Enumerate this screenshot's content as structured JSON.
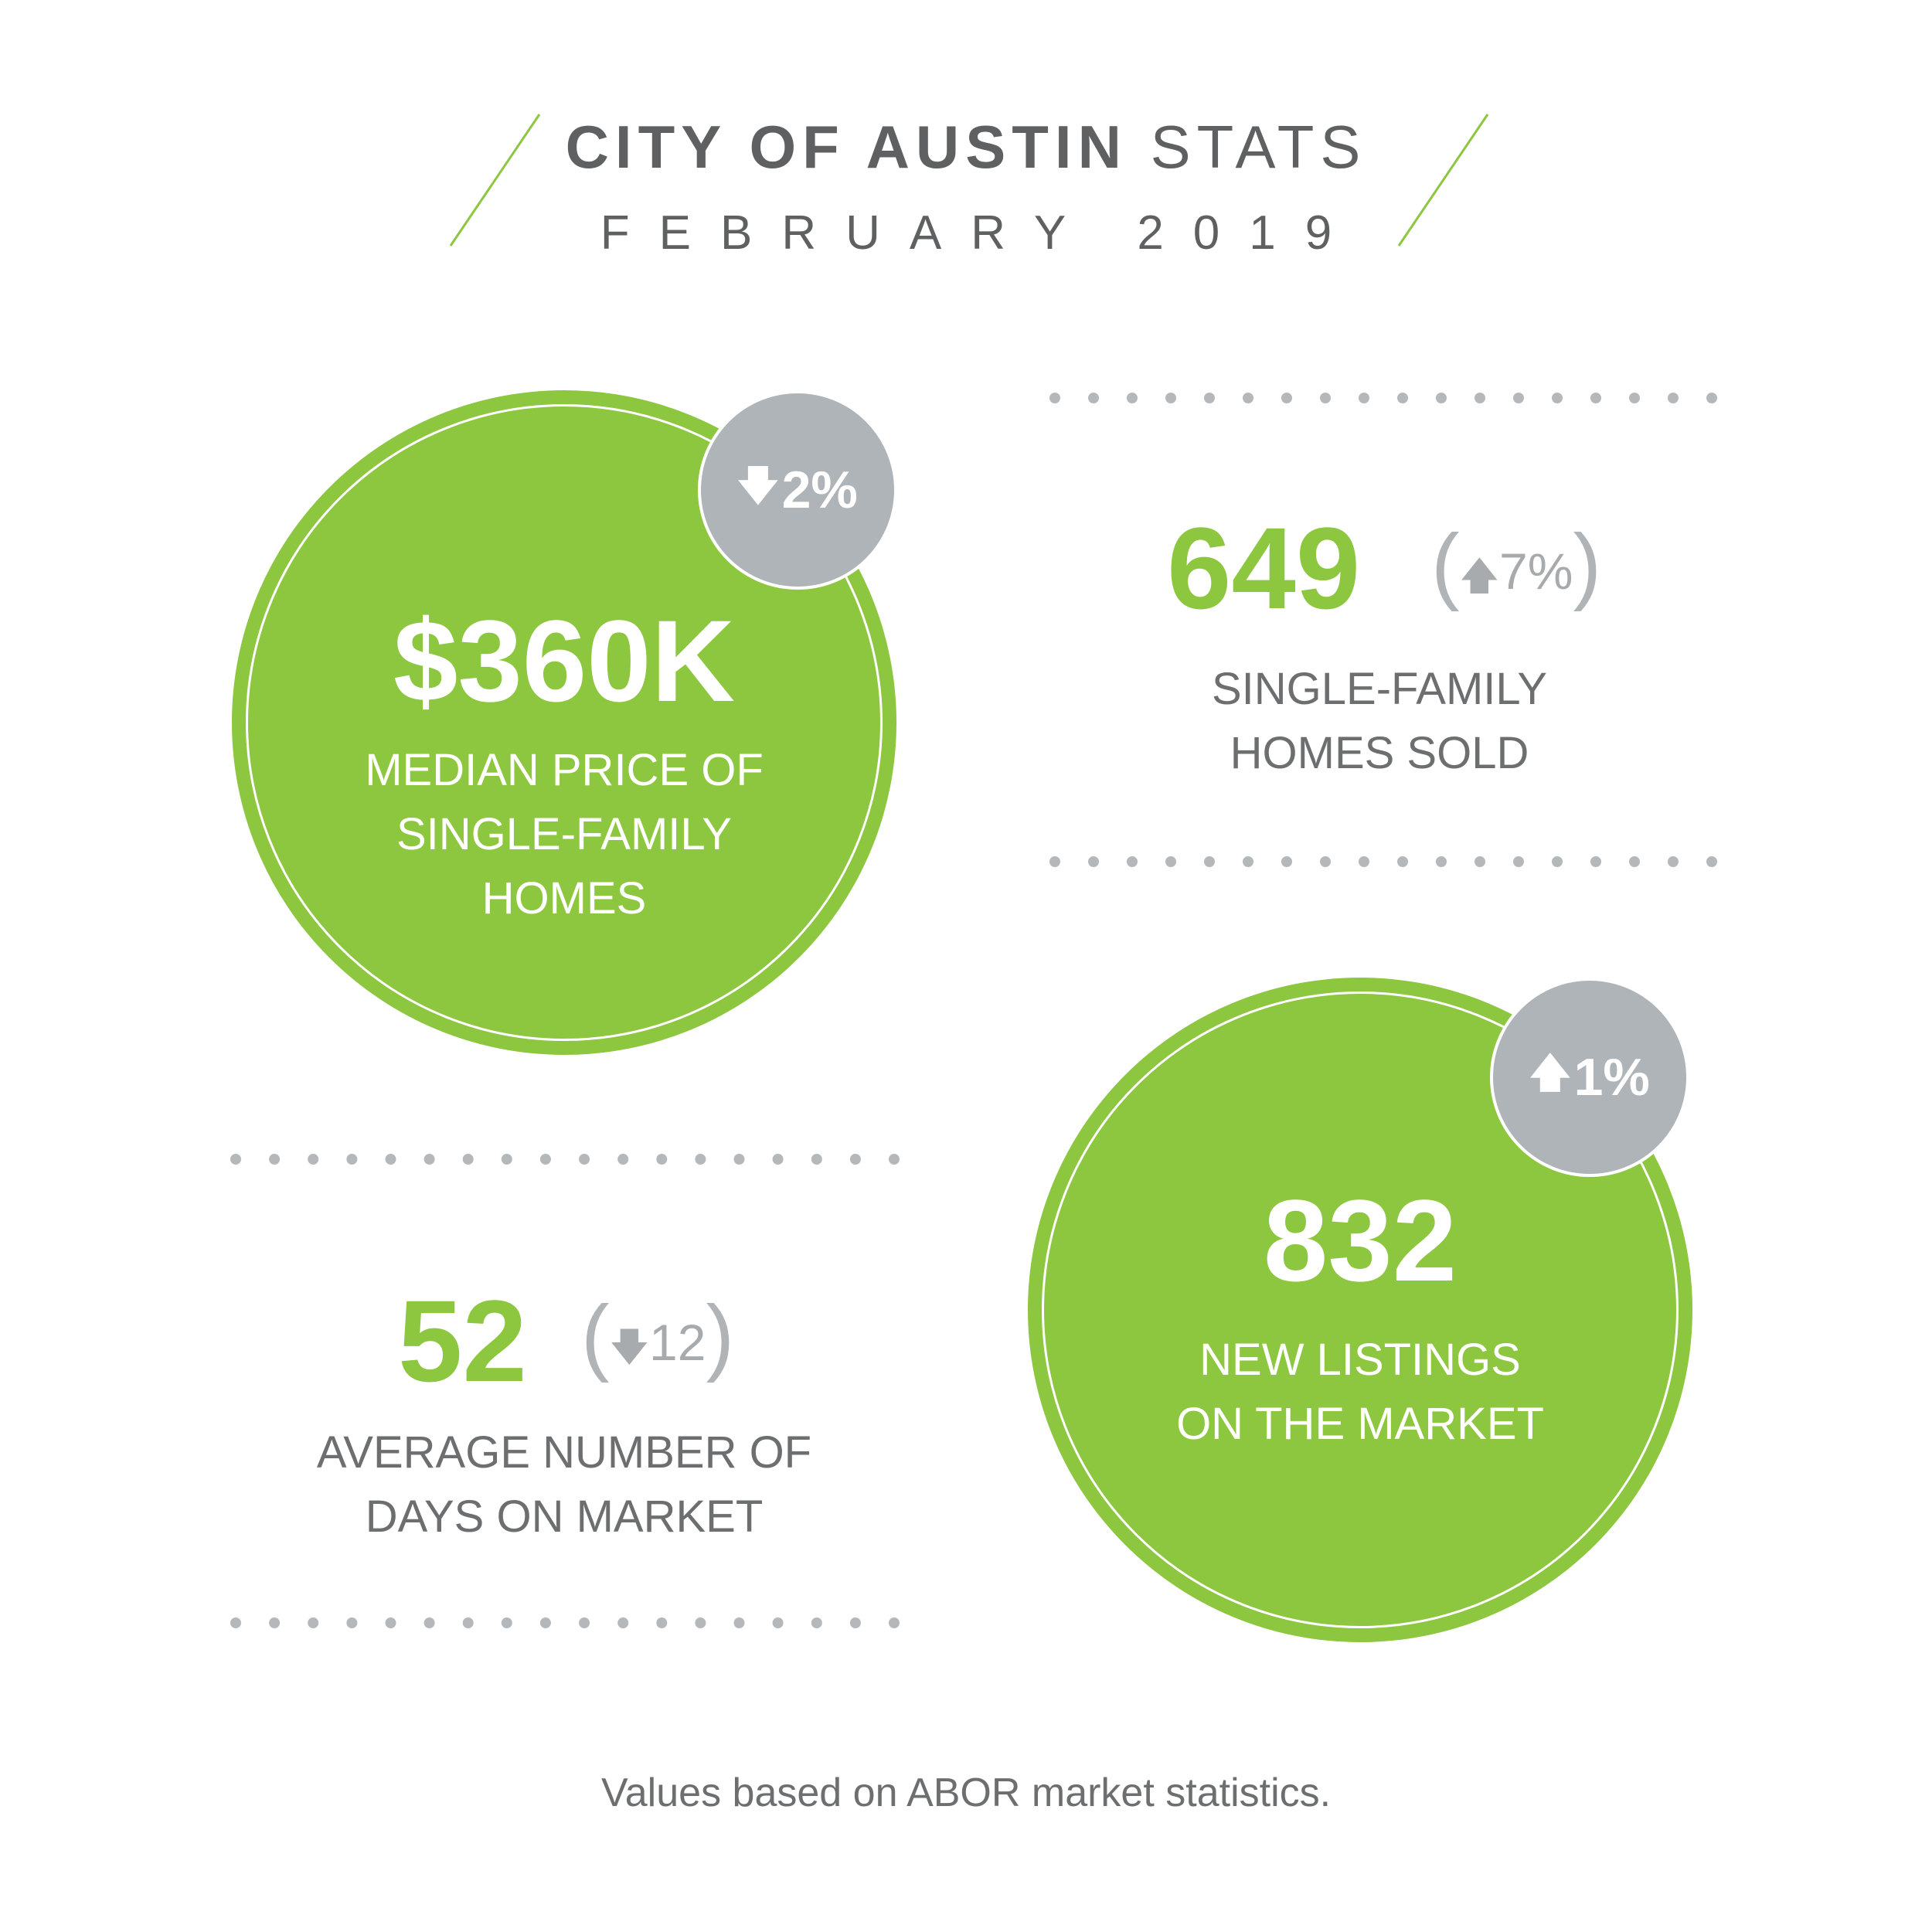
{
  "header": {
    "title_bold": "CITY OF AUSTIN",
    "title_light": "STATS",
    "subtitle": "FEBRUARY 2019"
  },
  "stats": {
    "median_price": {
      "value": "$360K",
      "label": "MEDIAN PRICE OF\nSINGLE-FAMILY\nHOMES",
      "change_icon": "arrow-down-icon",
      "change": "2%"
    },
    "homes_sold": {
      "value": "649",
      "change_icon": "arrow-up-icon",
      "change": "7%",
      "label": "SINGLE-FAMILY\nHOMES SOLD"
    },
    "days_on_market": {
      "value": "52",
      "change_icon": "arrow-down-icon",
      "change": "12",
      "label": "AVERAGE NUMBER OF\nDAYS ON MARKET"
    },
    "new_listings": {
      "value": "832",
      "label": "NEW LISTINGS\nON THE MARKET",
      "change_icon": "arrow-up-icon",
      "change": "1%"
    }
  },
  "footnote": "Values based on ABOR market statistics.",
  "colors": {
    "green": "#8dc63f",
    "gray_badge": "#afb4b8",
    "text_gray": "#5f6062",
    "dot_gray": "#b5b8bb"
  }
}
